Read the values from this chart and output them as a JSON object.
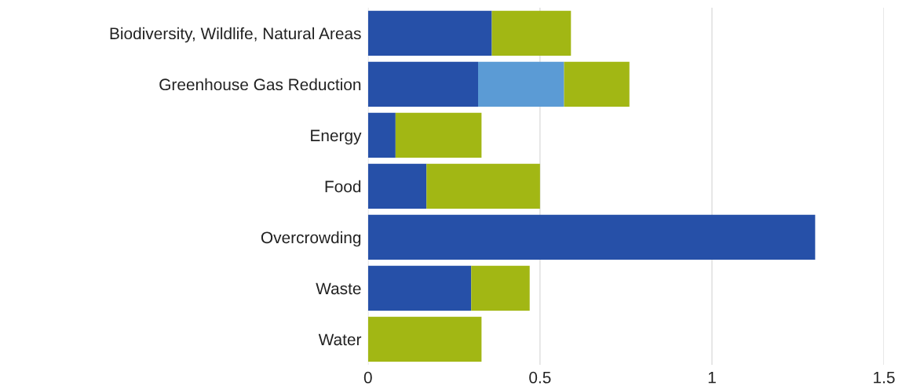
{
  "chart_data": {
    "type": "bar",
    "orientation": "horizontal",
    "stacked": true,
    "categories": [
      "Biodiversity, Wildlife, Natural Areas",
      "Greenhouse Gas Reduction",
      "Energy",
      "Food",
      "Overcrowding",
      "Waste",
      "Water"
    ],
    "series": [
      {
        "color": "#2650a8",
        "values": [
          0.36,
          0.32,
          0.08,
          0.17,
          1.3,
          0.3,
          0
        ]
      },
      {
        "color": "#5b9bd5",
        "values": [
          0,
          0.25,
          0,
          0,
          0,
          0,
          0
        ]
      },
      {
        "color": "#a2b714",
        "values": [
          0.23,
          0.19,
          0.25,
          0.33,
          0,
          0.17,
          0.33
        ]
      }
    ],
    "xlim": [
      0,
      1.5
    ],
    "xticks": [
      0,
      0.5,
      1,
      1.5
    ],
    "grid": "x",
    "legend": false
  }
}
